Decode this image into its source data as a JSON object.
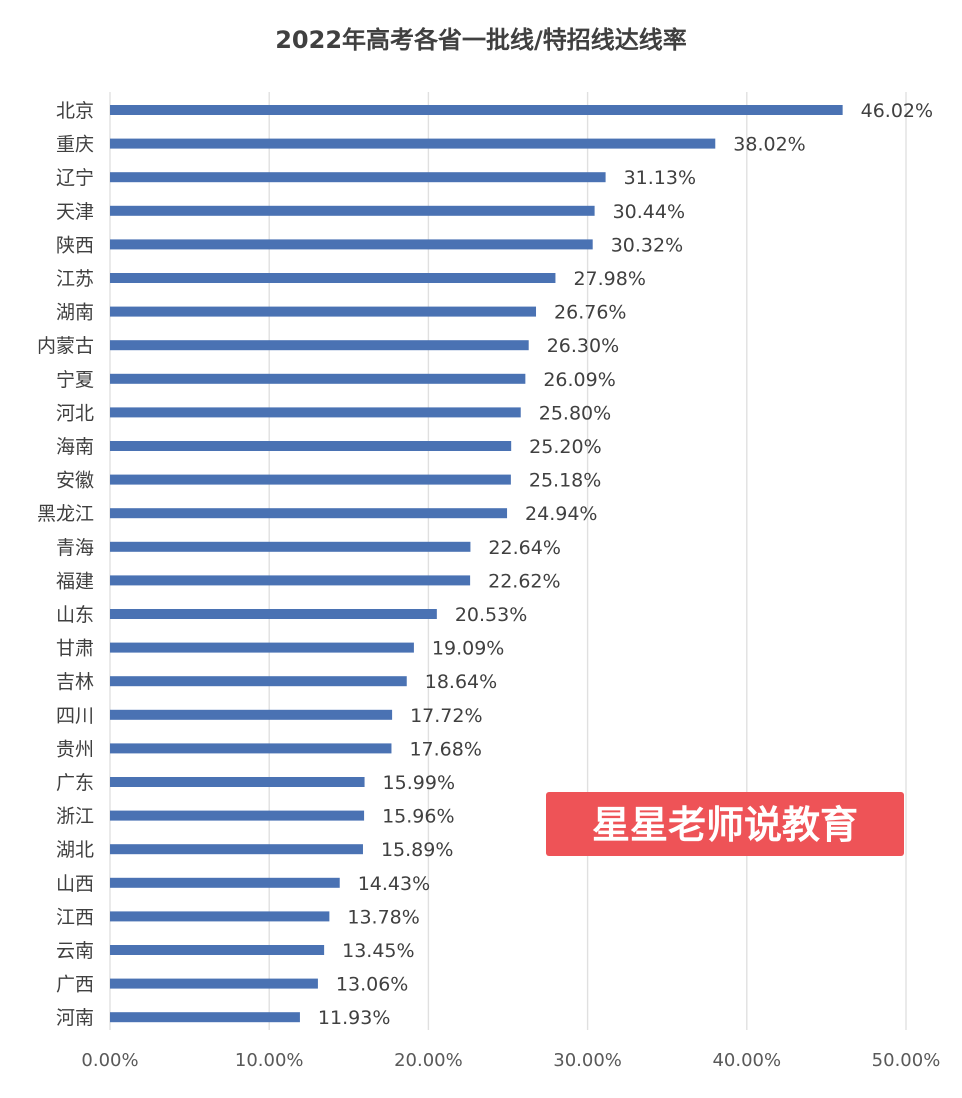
{
  "chart_data": {
    "type": "bar",
    "orientation": "horizontal",
    "title": "2022年高考各省一批线/特招线达线率",
    "categories": [
      "北京",
      "重庆",
      "辽宁",
      "天津",
      "陕西",
      "江苏",
      "湖南",
      "内蒙古",
      "宁夏",
      "河北",
      "海南",
      "安徽",
      "黑龙江",
      "青海",
      "福建",
      "山东",
      "甘肃",
      "吉林",
      "四川",
      "贵州",
      "广东",
      "浙江",
      "湖北",
      "山西",
      "江西",
      "云南",
      "广西",
      "河南"
    ],
    "values": [
      46.02,
      38.02,
      31.13,
      30.44,
      30.32,
      27.98,
      26.76,
      26.3,
      26.09,
      25.8,
      25.2,
      25.18,
      24.94,
      22.64,
      22.62,
      20.53,
      19.09,
      18.64,
      17.72,
      17.68,
      15.99,
      15.96,
      15.89,
      14.43,
      13.78,
      13.45,
      13.06,
      11.93
    ],
    "value_labels": [
      "46.02%",
      "38.02%",
      "31.13%",
      "30.44%",
      "30.32%",
      "27.98%",
      "26.76%",
      "26.30%",
      "26.09%",
      "25.80%",
      "25.20%",
      "25.18%",
      "24.94%",
      "22.64%",
      "22.62%",
      "20.53%",
      "19.09%",
      "18.64%",
      "17.72%",
      "17.68%",
      "15.99%",
      "15.96%",
      "15.89%",
      "14.43%",
      "13.78%",
      "13.45%",
      "13.06%",
      "11.93%"
    ],
    "x_ticks": [
      "0.00%",
      "10.00%",
      "20.00%",
      "30.00%",
      "40.00%",
      "50.00%"
    ],
    "xlim": [
      0,
      50
    ],
    "grid": "vertical",
    "legend": "none",
    "bar_color": "#4a72b3"
  },
  "watermark": {
    "text": "星星老师说教育",
    "background": "#ee5357"
  }
}
